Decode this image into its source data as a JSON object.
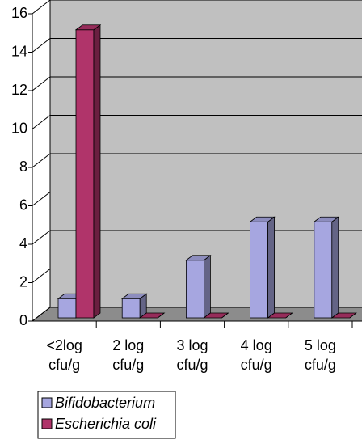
{
  "chart_data": {
    "type": "bar3d",
    "categories": [
      "<2log cfu/g",
      "2 log cfu/g",
      "3 log cfu/g",
      "4 log cfu/g",
      "5 log cfu/g"
    ],
    "series": [
      {
        "name": "Bifidobacterium",
        "color": "#a6a6e0",
        "values": [
          1,
          1,
          3,
          5,
          5
        ]
      },
      {
        "name": "Escherichia coli",
        "color": "#b0346a",
        "values": [
          15,
          0,
          0,
          0,
          0
        ]
      }
    ],
    "ylim": [
      0,
      16
    ],
    "yticks": [
      0,
      2,
      4,
      6,
      8,
      10,
      12,
      14,
      16
    ],
    "grid": true
  }
}
